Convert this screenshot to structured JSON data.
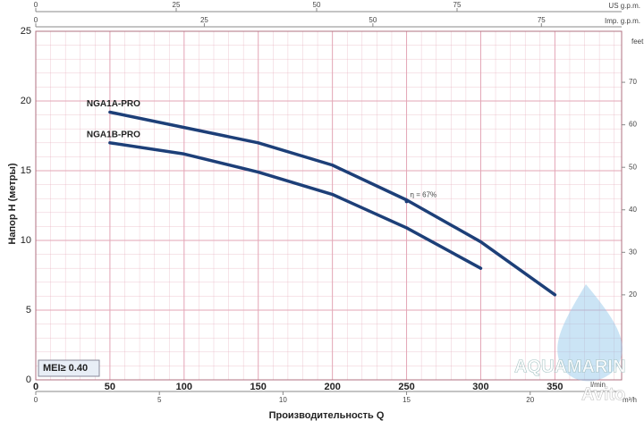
{
  "chart_data": {
    "type": "line",
    "y_label": "Напор H (метры)",
    "x_label": "Производительность Q",
    "x_unit": "l/min",
    "x": [
      50,
      100,
      150,
      200,
      250,
      300,
      350
    ],
    "series": [
      {
        "name": "NGA1A-PRO",
        "color": "#1d3f78",
        "values": [
          19.2,
          18.1,
          17.0,
          15.4,
          12.9,
          9.9,
          6.1
        ]
      },
      {
        "name": "NGA1B-PRO",
        "color": "#1d3f78",
        "values": [
          17.0,
          16.2,
          14.9,
          13.3,
          10.9,
          8.0,
          null
        ]
      }
    ],
    "xlim": [
      0,
      395
    ],
    "xticks": [
      0,
      50,
      100,
      150,
      200,
      250,
      300,
      350
    ],
    "ylim": [
      0,
      25
    ],
    "yticks": [
      0,
      5,
      10,
      15,
      20,
      25
    ],
    "grid": true,
    "grid_color": "#e3a6b6",
    "annotations": [
      {
        "text": "η = 67%",
        "x": 250,
        "y": 12.8
      },
      {
        "text": "MEI≥ 0.40"
      }
    ],
    "top_axes": [
      {
        "unit": "US g.p.m.",
        "lim": [
          0,
          104.3
        ],
        "ticks": [
          0,
          25,
          50,
          75
        ]
      },
      {
        "unit": "Imp. g.p.m.",
        "lim": [
          0,
          86.9
        ],
        "ticks": [
          0,
          25,
          50,
          75
        ]
      }
    ],
    "bottom_axis": {
      "unit": "m³/h",
      "lim": [
        0,
        23.7
      ],
      "ticks": [
        0,
        5,
        10,
        15,
        20
      ]
    },
    "right_axis": {
      "unit": "feet",
      "lim": [
        0,
        82
      ],
      "ticks": [
        20,
        30,
        40,
        50,
        60,
        70
      ]
    },
    "watermark": [
      "AQUAMARIN",
      "Avito"
    ]
  }
}
